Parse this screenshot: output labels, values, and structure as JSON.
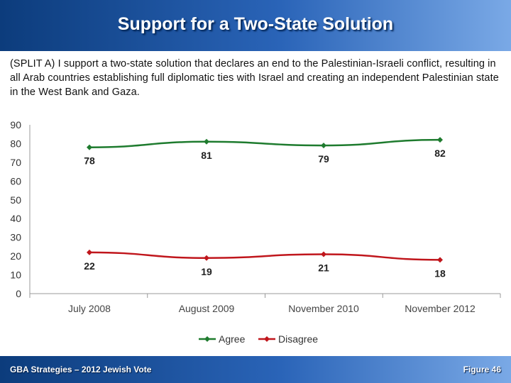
{
  "header": {
    "title": "Support for a Two-State Solution"
  },
  "question": {
    "text": "(SPLIT A) I support a two-state solution that declares an end to the Palestinian-Israeli conflict, resulting in all Arab countries establishing full diplomatic ties with Israel and creating an independent Palestinian state in the West Bank and Gaza."
  },
  "footer": {
    "left": "GBA Strategies – 2012 Jewish Vote",
    "right": "Figure  46"
  },
  "colors": {
    "agree": "#1e7b2e",
    "disagree": "#c0161c",
    "header": "#1a4f9a"
  },
  "chart_data": {
    "type": "line",
    "categories": [
      "July 2008",
      "August 2009",
      "November 2010",
      "November 2012"
    ],
    "series": [
      {
        "name": "Agree",
        "values": [
          78,
          81,
          79,
          82
        ],
        "color": "#1e7b2e",
        "marker": "diamond"
      },
      {
        "name": "Disagree",
        "values": [
          22,
          19,
          21,
          18
        ],
        "color": "#c0161c",
        "marker": "diamond"
      }
    ],
    "ylim": [
      0,
      90
    ],
    "yticks": [
      0,
      10,
      20,
      30,
      40,
      50,
      60,
      70,
      80,
      90
    ],
    "grid": false,
    "legend": "bottom-center",
    "data_labels": true
  }
}
